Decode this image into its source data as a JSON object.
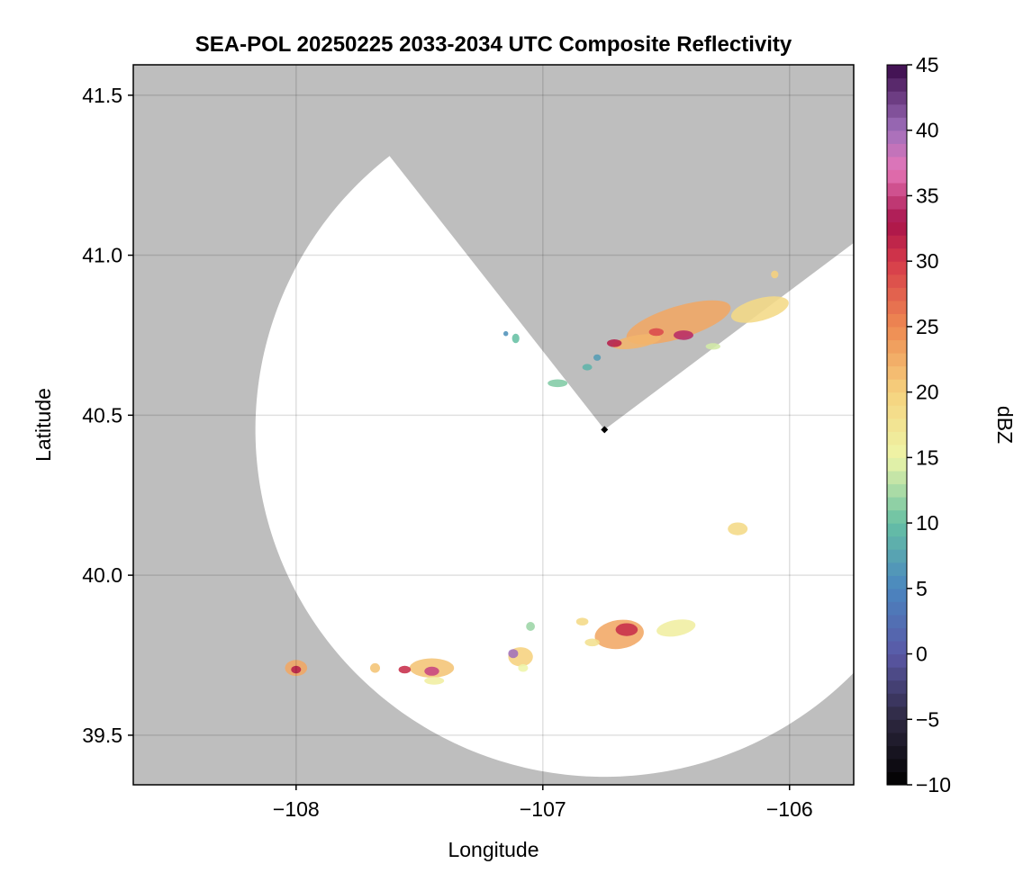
{
  "chart_data": {
    "type": "heatmap",
    "title": "SEA-POL 20250225 2033-2034 UTC Composite Reflectivity",
    "xlabel": "Longitude",
    "ylabel": "Latitude",
    "xlim": [
      -108.66,
      -105.74
    ],
    "ylim": [
      39.345,
      41.595
    ],
    "x_ticks": [
      -108,
      -107,
      -106
    ],
    "x_tick_labels": [
      "−108",
      "−107",
      "−106"
    ],
    "y_ticks": [
      39.5,
      40.0,
      40.5,
      41.0,
      41.5
    ],
    "y_tick_labels": [
      "39.5",
      "40.0",
      "40.5",
      "41.0",
      "41.5"
    ],
    "grid": true,
    "background_color": "#bebebe",
    "radar": {
      "center": [
        -106.75,
        40.455
      ],
      "range_lon_deg": 1.415,
      "range_lat_deg": 1.085,
      "blocked_sector_azimuth_deg": [
        -38,
        53
      ]
    },
    "colorbar": {
      "label": "dBZ",
      "range": [
        -10,
        45
      ],
      "ticks": [
        -10,
        -5,
        0,
        5,
        10,
        15,
        20,
        25,
        30,
        35,
        40,
        45
      ],
      "tick_labels": [
        "−10",
        "−5",
        "0",
        "5",
        "10",
        "15",
        "20",
        "25",
        "30",
        "35",
        "40",
        "45"
      ],
      "colormap": "spectral-like",
      "stops": [
        [
          -10,
          "#000000"
        ],
        [
          -5,
          "#2e2840"
        ],
        [
          0,
          "#5a58a6"
        ],
        [
          5,
          "#4a86c0"
        ],
        [
          10,
          "#66c0a4"
        ],
        [
          15,
          "#eef5a8"
        ],
        [
          20,
          "#f6d27e"
        ],
        [
          25,
          "#ee8a52"
        ],
        [
          30,
          "#d63a4a"
        ],
        [
          33,
          "#a8124a"
        ],
        [
          37,
          "#e676b8"
        ],
        [
          40,
          "#a070bc"
        ],
        [
          45,
          "#3a0a4a"
        ]
      ]
    },
    "echo_cells": [
      {
        "lon": -106.45,
        "lat": 40.79,
        "rlon": 0.22,
        "rlat": 0.05,
        "dbz": 23,
        "angle_deg": -17
      },
      {
        "lon": -106.12,
        "lat": 40.83,
        "rlon": 0.12,
        "rlat": 0.035,
        "dbz": 19,
        "angle_deg": -15
      },
      {
        "lon": -106.62,
        "lat": 40.73,
        "rlon": 0.1,
        "rlat": 0.02,
        "dbz": 22,
        "angle_deg": -10
      },
      {
        "lon": -106.43,
        "lat": 40.75,
        "rlon": 0.04,
        "rlat": 0.015,
        "dbz": 34,
        "angle_deg": 0
      },
      {
        "lon": -106.71,
        "lat": 40.725,
        "rlon": 0.03,
        "rlat": 0.012,
        "dbz": 32,
        "angle_deg": 0
      },
      {
        "lon": -106.54,
        "lat": 40.76,
        "rlon": 0.03,
        "rlat": 0.012,
        "dbz": 29,
        "angle_deg": 0
      },
      {
        "lon": -106.06,
        "lat": 40.94,
        "rlon": 0.015,
        "rlat": 0.012,
        "dbz": 20,
        "angle_deg": 0
      },
      {
        "lon": -106.31,
        "lat": 40.715,
        "rlon": 0.03,
        "rlat": 0.01,
        "dbz": 14,
        "angle_deg": 0
      },
      {
        "lon": -106.94,
        "lat": 40.6,
        "rlon": 0.04,
        "rlat": 0.012,
        "dbz": 11,
        "angle_deg": 0
      },
      {
        "lon": -106.82,
        "lat": 40.65,
        "rlon": 0.02,
        "rlat": 0.01,
        "dbz": 9,
        "angle_deg": 0
      },
      {
        "lon": -106.78,
        "lat": 40.68,
        "rlon": 0.015,
        "rlat": 0.01,
        "dbz": 7,
        "angle_deg": 0
      },
      {
        "lon": -107.11,
        "lat": 40.74,
        "rlon": 0.015,
        "rlat": 0.015,
        "dbz": 10,
        "angle_deg": 0
      },
      {
        "lon": -107.15,
        "lat": 40.755,
        "rlon": 0.01,
        "rlat": 0.008,
        "dbz": 6,
        "angle_deg": 0
      },
      {
        "lon": -106.21,
        "lat": 40.145,
        "rlon": 0.04,
        "rlat": 0.02,
        "dbz": 19,
        "angle_deg": 0
      },
      {
        "lon": -106.69,
        "lat": 39.815,
        "rlon": 0.1,
        "rlat": 0.045,
        "dbz": 23,
        "angle_deg": -8
      },
      {
        "lon": -106.66,
        "lat": 39.83,
        "rlon": 0.045,
        "rlat": 0.02,
        "dbz": 31,
        "angle_deg": 0
      },
      {
        "lon": -106.46,
        "lat": 39.835,
        "rlon": 0.08,
        "rlat": 0.025,
        "dbz": 16,
        "angle_deg": -10
      },
      {
        "lon": -106.84,
        "lat": 39.855,
        "rlon": 0.025,
        "rlat": 0.012,
        "dbz": 19,
        "angle_deg": 0
      },
      {
        "lon": -106.8,
        "lat": 39.79,
        "rlon": 0.03,
        "rlat": 0.012,
        "dbz": 18,
        "angle_deg": 0
      },
      {
        "lon": -107.09,
        "lat": 39.745,
        "rlon": 0.05,
        "rlat": 0.03,
        "dbz": 20,
        "angle_deg": 0
      },
      {
        "lon": -107.12,
        "lat": 39.755,
        "rlon": 0.02,
        "rlat": 0.014,
        "dbz": 40,
        "angle_deg": 0
      },
      {
        "lon": -107.05,
        "lat": 39.84,
        "rlon": 0.018,
        "rlat": 0.014,
        "dbz": 12,
        "angle_deg": 0
      },
      {
        "lon": -107.08,
        "lat": 39.71,
        "rlon": 0.02,
        "rlat": 0.012,
        "dbz": 15,
        "angle_deg": 0
      },
      {
        "lon": -107.45,
        "lat": 39.71,
        "rlon": 0.09,
        "rlat": 0.03,
        "dbz": 21,
        "angle_deg": 0
      },
      {
        "lon": -107.45,
        "lat": 39.7,
        "rlon": 0.03,
        "rlat": 0.014,
        "dbz": 35,
        "angle_deg": 0
      },
      {
        "lon": -107.56,
        "lat": 39.705,
        "rlon": 0.025,
        "rlat": 0.012,
        "dbz": 31,
        "angle_deg": 0
      },
      {
        "lon": -107.44,
        "lat": 39.67,
        "rlon": 0.04,
        "rlat": 0.012,
        "dbz": 16,
        "angle_deg": 0
      },
      {
        "lon": -107.68,
        "lat": 39.71,
        "rlon": 0.02,
        "rlat": 0.015,
        "dbz": 21,
        "angle_deg": 0
      },
      {
        "lon": -108.0,
        "lat": 39.71,
        "rlon": 0.045,
        "rlat": 0.025,
        "dbz": 23,
        "angle_deg": 0
      },
      {
        "lon": -108.0,
        "lat": 39.705,
        "rlon": 0.02,
        "rlat": 0.012,
        "dbz": 32,
        "angle_deg": 0
      }
    ]
  }
}
